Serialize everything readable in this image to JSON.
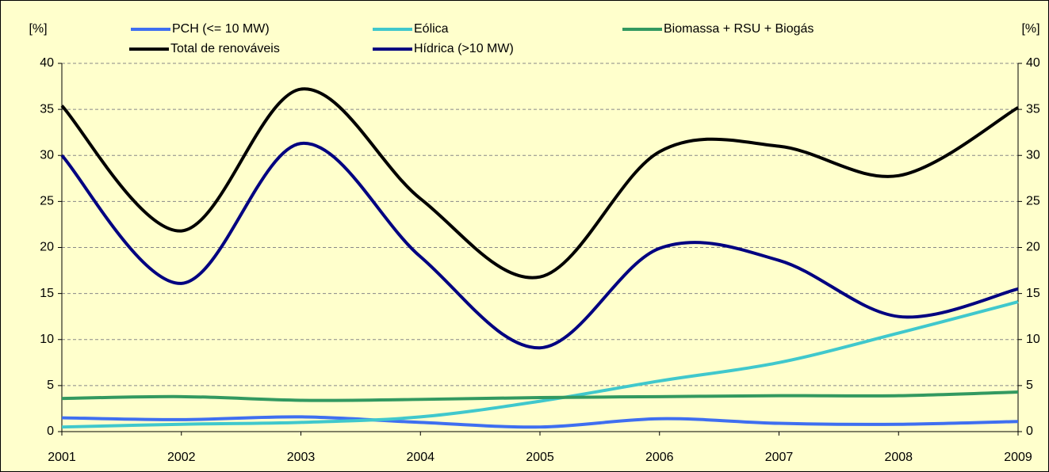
{
  "chart_data": {
    "type": "line",
    "categories": [
      "2001",
      "2002",
      "2003",
      "2004",
      "2005",
      "2006",
      "2007",
      "2008",
      "2009"
    ],
    "series": [
      {
        "name": "PCH (<= 10 MW)",
        "color": "#3f6ff0",
        "values": [
          1.5,
          1.3,
          1.6,
          1.0,
          0.5,
          1.4,
          0.9,
          0.8,
          1.1
        ]
      },
      {
        "name": "Eólica",
        "color": "#40c8cc",
        "values": [
          0.5,
          0.8,
          1.0,
          1.6,
          3.3,
          5.5,
          7.5,
          10.7,
          14.1
        ]
      },
      {
        "name": "Biomassa + RSU + Biogás",
        "color": "#339960",
        "values": [
          3.6,
          3.8,
          3.4,
          3.5,
          3.7,
          3.8,
          3.9,
          3.9,
          4.3
        ]
      },
      {
        "name": "Total de renováveis",
        "color": "#000000",
        "values": [
          35.4,
          21.8,
          37.2,
          25.3,
          16.8,
          30.4,
          31.0,
          27.8,
          35.2
        ]
      },
      {
        "name": "Hídrica (>10 MW)",
        "color": "#000080",
        "values": [
          30.0,
          16.1,
          31.3,
          19.0,
          9.1,
          19.9,
          18.6,
          12.5,
          15.5
        ]
      }
    ],
    "ylabel": "[%]",
    "y2label": "[%]",
    "ylim": [
      0,
      40
    ],
    "yticks": [
      0,
      5,
      10,
      15,
      20,
      25,
      30,
      35,
      40
    ],
    "y2lim": [
      0,
      40
    ],
    "y2ticks": [
      0,
      5,
      10,
      15,
      20,
      25,
      30,
      35,
      40
    ],
    "grid": true,
    "smooth": true,
    "background": "#ffffcc"
  }
}
